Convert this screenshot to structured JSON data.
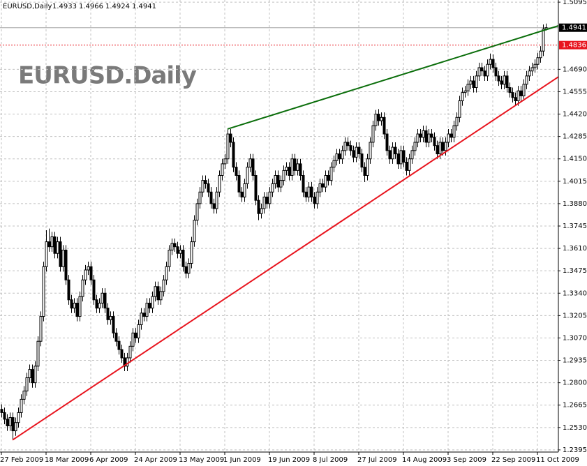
{
  "chart_data": {
    "type": "candlestick",
    "title": "EURUSD,Daily",
    "watermark": "EURUSD.Daily",
    "up_color": "#ffffff",
    "down_color": "#000000",
    "grid": true,
    "categories": [
      "27 Feb 2009",
      null,
      null,
      null,
      null,
      null,
      null,
      null,
      null,
      null,
      null,
      null,
      null,
      null,
      null,
      null,
      "18 Mar 2009",
      null,
      null,
      null,
      null,
      null,
      null,
      null,
      null,
      null,
      null,
      null,
      null,
      null,
      null,
      null,
      "6 Apr 2009",
      null,
      null,
      null,
      null,
      null,
      null,
      null,
      null,
      null,
      null,
      null,
      null,
      null,
      null,
      null,
      "24 Apr 2009",
      null,
      null,
      null,
      null,
      null,
      null,
      null,
      null,
      null,
      null,
      null,
      null,
      null,
      null,
      null,
      "13 May 2009",
      null,
      null,
      null,
      null,
      null,
      null,
      null,
      null,
      null,
      null,
      null,
      null,
      null,
      null,
      null,
      "1 Jun 2009",
      null,
      null,
      null,
      null,
      null,
      null,
      null,
      null,
      null,
      null,
      null,
      null,
      null,
      null,
      null,
      "19 Jun 2009",
      null,
      null,
      null,
      null,
      null,
      null,
      null,
      null,
      null,
      null,
      null,
      null,
      null,
      null,
      null,
      "8 Jul 2009",
      null,
      null,
      null,
      null,
      null,
      null,
      null,
      null,
      null,
      null,
      null,
      null,
      null,
      null,
      null,
      "27 Jul 2009",
      null,
      null,
      null,
      null,
      null,
      null,
      null,
      null,
      null,
      null,
      null,
      null,
      null,
      null,
      null,
      "14 Aug 2009",
      null,
      null,
      null,
      null,
      null,
      null,
      null,
      null,
      null,
      null,
      null,
      null,
      null,
      null,
      null,
      "3 Sep 2009",
      null,
      null,
      null,
      null,
      null,
      null,
      null,
      null,
      null,
      null,
      null,
      null,
      null,
      null,
      null,
      "22 Sep 2009",
      null,
      null,
      null,
      null,
      null,
      null,
      null,
      null,
      null,
      null,
      null,
      null,
      null,
      null,
      null,
      "11 Oct 2009",
      null,
      null,
      null
    ],
    "open": [
      1.264,
      1.262,
      1.258,
      1.254,
      1.259,
      1.251,
      1.256,
      1.262,
      1.27,
      1.275,
      1.283,
      1.288,
      1.28,
      1.29,
      1.305,
      1.32,
      1.35,
      1.365,
      1.362,
      1.368,
      1.358,
      1.365,
      1.35,
      1.36,
      1.342,
      1.33,
      1.325,
      1.328,
      1.32,
      1.332,
      1.342,
      1.348,
      1.35,
      1.342,
      1.33,
      1.325,
      1.328,
      1.334,
      1.325,
      1.318,
      1.32,
      1.31,
      1.305,
      1.3,
      1.295,
      1.29,
      1.295,
      1.302,
      1.31,
      1.307,
      1.315,
      1.322,
      1.32,
      1.328,
      1.325,
      1.332,
      1.338,
      1.33,
      1.335,
      1.342,
      1.35,
      1.36,
      1.364,
      1.362,
      1.358,
      1.36,
      1.35,
      1.346,
      1.352,
      1.365,
      1.378,
      1.388,
      1.395,
      1.402,
      1.4,
      1.395,
      1.388,
      1.385,
      1.395,
      1.405,
      1.412,
      1.415,
      1.43,
      1.425,
      1.41,
      1.405,
      1.395,
      1.392,
      1.4,
      1.41,
      1.415,
      1.405,
      1.39,
      1.382,
      1.385,
      1.392,
      1.388,
      1.395,
      1.4,
      1.405,
      1.398,
      1.402,
      1.408,
      1.41,
      1.405,
      1.415,
      1.408,
      1.412,
      1.405,
      1.395,
      1.392,
      1.398,
      1.392,
      1.388,
      1.395,
      1.4,
      1.398,
      1.405,
      1.402,
      1.41,
      1.414,
      1.418,
      1.415,
      1.42,
      1.425,
      1.423,
      1.42,
      1.416,
      1.422,
      1.418,
      1.41,
      1.405,
      1.415,
      1.425,
      1.435,
      1.442,
      1.438,
      1.44,
      1.43,
      1.42,
      1.415,
      1.422,
      1.418,
      1.412,
      1.42,
      1.413,
      1.408,
      1.415,
      1.42,
      1.425,
      1.43,
      1.428,
      1.432,
      1.425,
      1.43,
      1.428,
      1.423,
      1.418,
      1.425,
      1.42,
      1.425,
      1.43,
      1.428,
      1.435,
      1.44,
      1.45,
      1.455,
      1.456,
      1.46,
      1.462,
      1.458,
      1.465,
      1.47,
      1.468,
      1.465,
      1.472,
      1.475,
      1.47,
      1.465,
      1.462,
      1.46,
      1.465,
      1.458,
      1.455,
      1.452,
      1.45,
      1.456,
      1.453,
      1.46,
      1.465,
      1.468,
      1.47,
      1.472,
      1.476,
      1.48,
      1.4933
    ],
    "high": [
      1.267,
      1.265,
      1.261,
      1.262,
      1.262,
      1.259,
      1.265,
      1.273,
      1.278,
      1.286,
      1.291,
      1.291,
      1.293,
      1.308,
      1.323,
      1.353,
      1.372,
      1.373,
      1.371,
      1.371,
      1.368,
      1.368,
      1.363,
      1.363,
      1.345,
      1.333,
      1.331,
      1.331,
      1.335,
      1.345,
      1.351,
      1.353,
      1.353,
      1.345,
      1.333,
      1.331,
      1.337,
      1.337,
      1.328,
      1.323,
      1.323,
      1.313,
      1.308,
      1.303,
      1.298,
      1.298,
      1.305,
      1.313,
      1.313,
      1.318,
      1.325,
      1.325,
      1.331,
      1.331,
      1.335,
      1.341,
      1.341,
      1.338,
      1.345,
      1.353,
      1.363,
      1.367,
      1.367,
      1.365,
      1.363,
      1.363,
      1.353,
      1.355,
      1.368,
      1.381,
      1.391,
      1.398,
      1.405,
      1.405,
      1.403,
      1.398,
      1.391,
      1.398,
      1.408,
      1.415,
      1.418,
      1.433,
      1.433,
      1.428,
      1.413,
      1.408,
      1.398,
      1.403,
      1.413,
      1.418,
      1.418,
      1.408,
      1.393,
      1.388,
      1.395,
      1.395,
      1.398,
      1.403,
      1.408,
      1.408,
      1.405,
      1.411,
      1.413,
      1.413,
      1.418,
      1.418,
      1.415,
      1.415,
      1.408,
      1.398,
      1.401,
      1.401,
      1.395,
      1.398,
      1.403,
      1.403,
      1.408,
      1.408,
      1.413,
      1.417,
      1.421,
      1.421,
      1.423,
      1.428,
      1.428,
      1.426,
      1.423,
      1.425,
      1.425,
      1.421,
      1.413,
      1.418,
      1.428,
      1.438,
      1.4445,
      1.445,
      1.443,
      1.443,
      1.433,
      1.423,
      1.425,
      1.425,
      1.421,
      1.423,
      1.423,
      1.416,
      1.418,
      1.423,
      1.428,
      1.433,
      1.433,
      1.435,
      1.435,
      1.433,
      1.433,
      1.431,
      1.426,
      1.428,
      1.428,
      1.428,
      1.433,
      1.433,
      1.438,
      1.443,
      1.453,
      1.458,
      1.459,
      1.463,
      1.465,
      1.465,
      1.468,
      1.473,
      1.473,
      1.471,
      1.475,
      1.4785,
      1.478,
      1.473,
      1.468,
      1.465,
      1.468,
      1.468,
      1.461,
      1.458,
      1.455,
      1.459,
      1.459,
      1.463,
      1.468,
      1.471,
      1.473,
      1.475,
      1.479,
      1.483,
      1.496,
      1.4966
    ],
    "low": [
      1.259,
      1.255,
      1.251,
      1.251,
      1.2455,
      1.248,
      1.253,
      1.259,
      1.267,
      1.272,
      1.28,
      1.277,
      1.277,
      1.287,
      1.302,
      1.317,
      1.347,
      1.359,
      1.359,
      1.355,
      1.355,
      1.347,
      1.347,
      1.339,
      1.327,
      1.322,
      1.322,
      1.317,
      1.317,
      1.329,
      1.339,
      1.345,
      1.339,
      1.327,
      1.322,
      1.322,
      1.325,
      1.322,
      1.315,
      1.315,
      1.307,
      1.302,
      1.297,
      1.292,
      1.287,
      1.287,
      1.292,
      1.299,
      1.304,
      1.304,
      1.312,
      1.317,
      1.317,
      1.322,
      1.322,
      1.329,
      1.327,
      1.327,
      1.332,
      1.339,
      1.347,
      1.357,
      1.359,
      1.355,
      1.355,
      1.347,
      1.343,
      1.343,
      1.349,
      1.362,
      1.375,
      1.385,
      1.392,
      1.397,
      1.392,
      1.385,
      1.382,
      1.382,
      1.392,
      1.402,
      1.409,
      1.412,
      1.422,
      1.407,
      1.402,
      1.392,
      1.389,
      1.389,
      1.397,
      1.407,
      1.402,
      1.387,
      1.378,
      1.379,
      1.382,
      1.385,
      1.385,
      1.392,
      1.397,
      1.395,
      1.395,
      1.399,
      1.405,
      1.402,
      1.402,
      1.405,
      1.405,
      1.402,
      1.392,
      1.389,
      1.389,
      1.389,
      1.385,
      1.385,
      1.392,
      1.395,
      1.395,
      1.399,
      1.399,
      1.407,
      1.411,
      1.412,
      1.412,
      1.417,
      1.42,
      1.417,
      1.413,
      1.413,
      1.415,
      1.407,
      1.401,
      1.402,
      1.412,
      1.422,
      1.432,
      1.435,
      1.435,
      1.427,
      1.417,
      1.412,
      1.412,
      1.415,
      1.409,
      1.409,
      1.41,
      1.405,
      1.405,
      1.412,
      1.417,
      1.422,
      1.425,
      1.425,
      1.422,
      1.422,
      1.425,
      1.42,
      1.415,
      1.415,
      1.417,
      1.417,
      1.422,
      1.425,
      1.425,
      1.432,
      1.437,
      1.447,
      1.452,
      1.453,
      1.457,
      1.455,
      1.455,
      1.462,
      1.465,
      1.462,
      1.462,
      1.469,
      1.467,
      1.462,
      1.459,
      1.457,
      1.457,
      1.455,
      1.452,
      1.449,
      1.447,
      1.447,
      1.45,
      1.45,
      1.457,
      1.462,
      1.465,
      1.467,
      1.469,
      1.473,
      1.477,
      1.4924
    ],
    "close": [
      1.262,
      1.258,
      1.254,
      1.259,
      1.251,
      1.256,
      1.262,
      1.27,
      1.275,
      1.283,
      1.288,
      1.28,
      1.29,
      1.305,
      1.32,
      1.35,
      1.365,
      1.362,
      1.368,
      1.358,
      1.365,
      1.35,
      1.36,
      1.342,
      1.33,
      1.325,
      1.328,
      1.32,
      1.332,
      1.342,
      1.348,
      1.35,
      1.342,
      1.33,
      1.325,
      1.328,
      1.334,
      1.325,
      1.318,
      1.32,
      1.31,
      1.305,
      1.3,
      1.295,
      1.29,
      1.295,
      1.302,
      1.31,
      1.307,
      1.315,
      1.322,
      1.32,
      1.328,
      1.325,
      1.332,
      1.338,
      1.33,
      1.335,
      1.342,
      1.35,
      1.36,
      1.364,
      1.362,
      1.358,
      1.36,
      1.35,
      1.346,
      1.352,
      1.365,
      1.378,
      1.388,
      1.395,
      1.402,
      1.4,
      1.395,
      1.388,
      1.385,
      1.395,
      1.405,
      1.412,
      1.415,
      1.43,
      1.425,
      1.41,
      1.405,
      1.395,
      1.392,
      1.4,
      1.41,
      1.415,
      1.405,
      1.39,
      1.382,
      1.385,
      1.392,
      1.388,
      1.395,
      1.4,
      1.405,
      1.398,
      1.402,
      1.408,
      1.41,
      1.405,
      1.415,
      1.408,
      1.412,
      1.405,
      1.395,
      1.392,
      1.398,
      1.392,
      1.388,
      1.395,
      1.4,
      1.398,
      1.405,
      1.402,
      1.41,
      1.414,
      1.418,
      1.415,
      1.42,
      1.425,
      1.423,
      1.42,
      1.416,
      1.422,
      1.418,
      1.41,
      1.405,
      1.415,
      1.425,
      1.435,
      1.442,
      1.438,
      1.44,
      1.43,
      1.42,
      1.415,
      1.422,
      1.418,
      1.412,
      1.42,
      1.413,
      1.408,
      1.415,
      1.42,
      1.425,
      1.43,
      1.428,
      1.432,
      1.425,
      1.43,
      1.428,
      1.423,
      1.418,
      1.425,
      1.42,
      1.425,
      1.43,
      1.428,
      1.435,
      1.44,
      1.45,
      1.455,
      1.456,
      1.46,
      1.462,
      1.458,
      1.465,
      1.47,
      1.468,
      1.465,
      1.472,
      1.475,
      1.47,
      1.465,
      1.462,
      1.46,
      1.465,
      1.458,
      1.455,
      1.452,
      1.45,
      1.456,
      1.453,
      1.46,
      1.465,
      1.468,
      1.47,
      1.472,
      1.476,
      1.48,
      1.4933,
      1.4941
    ],
    "ylim": [
      1.2382,
      1.5108
    ],
    "yticks": [
      1.5095,
      {
        "value": 1.469,
        "label": "1.4690"
      },
      1.4555,
      {
        "value": 1.442,
        "label": "1.4420"
      },
      1.4285,
      {
        "value": 1.415,
        "label": "1.4150"
      },
      1.4015,
      {
        "value": 1.388,
        "label": "1.3880"
      },
      1.3745,
      {
        "value": 1.361,
        "label": "1.3610"
      },
      1.3475,
      {
        "value": 1.334,
        "label": "1.3340"
      },
      1.3205,
      {
        "value": 1.307,
        "label": "1.3070"
      },
      1.2935,
      {
        "value": 1.28,
        "label": "1.2800"
      },
      1.2665,
      {
        "value": 1.253,
        "label": "1.2530"
      },
      1.2395
    ],
    "price_lines": [
      {
        "value": 1.4941,
        "color": "#000000"
      },
      {
        "value": 1.4836,
        "color": "#e8141e"
      }
    ],
    "trendlines": [
      {
        "color": "#0b6e0b",
        "x": [
          81,
          200
        ],
        "values": [
          1.433,
          1.4955
        ]
      },
      {
        "color": "#e8141e",
        "x": [
          4,
          200
        ],
        "values": [
          1.2455,
          1.465
        ]
      }
    ]
  }
}
